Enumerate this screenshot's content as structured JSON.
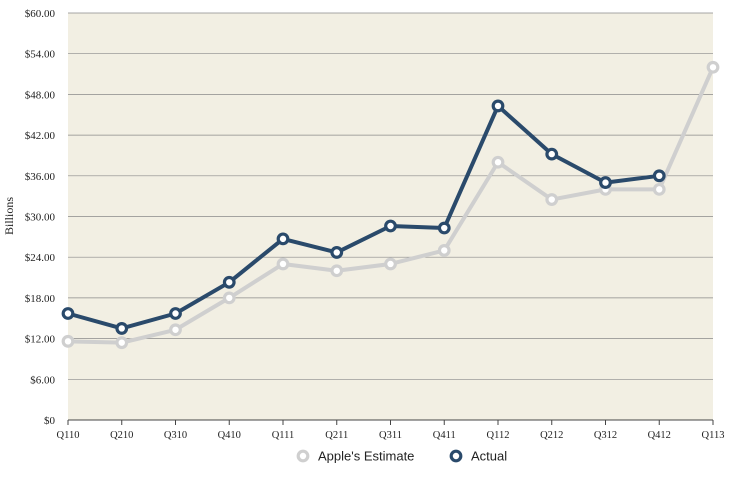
{
  "chart_data": {
    "type": "line",
    "title": "",
    "xlabel": "",
    "ylabel": "Billions",
    "categories": [
      "Q110",
      "Q210",
      "Q310",
      "Q410",
      "Q111",
      "Q211",
      "Q311",
      "Q411",
      "Q112",
      "Q212",
      "Q312",
      "Q412",
      "Q113"
    ],
    "ylim": [
      0,
      60
    ],
    "yticks": [
      0,
      6,
      12,
      18,
      24,
      30,
      36,
      42,
      48,
      54,
      60
    ],
    "ytick_labels": [
      "$0",
      "$6.00",
      "$12.00",
      "$18.00",
      "$24.00",
      "$30.00",
      "$36.00",
      "$42.00",
      "$48.00",
      "$54.00",
      "$60.00"
    ],
    "grid": true,
    "legend_position": "bottom-center",
    "series": [
      {
        "name": "Apple's Estimate",
        "color": "#cfcfcf",
        "values": [
          11.6,
          11.4,
          13.3,
          18.0,
          23.0,
          22.0,
          23.0,
          25.0,
          38.0,
          32.5,
          34.0,
          34.0,
          52.0
        ]
      },
      {
        "name": "Actual",
        "color": "#2a4a6b",
        "values": [
          15.7,
          13.5,
          15.7,
          20.3,
          26.7,
          24.7,
          28.6,
          28.3,
          46.3,
          39.2,
          35.0,
          36.0,
          null
        ]
      }
    ],
    "background_color": "#f2efe3",
    "gridline_color": "#8a8a8a"
  }
}
